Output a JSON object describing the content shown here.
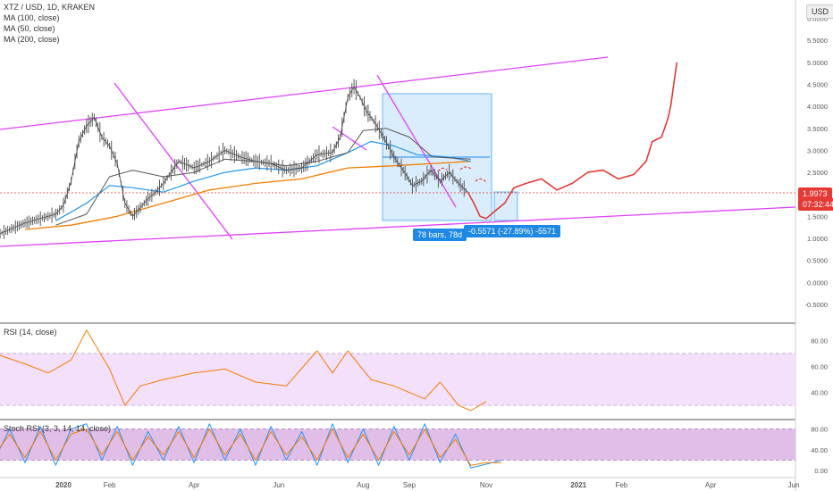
{
  "header": {
    "symbol": "XTZ / USD, 1D, KRAKEN",
    "ma100": "MA (100, close)",
    "ma50": "MA (50, close)",
    "ma200": "MA (200, close)",
    "currency": "USD"
  },
  "rsi_panel": {
    "label": "RSI (14, close)"
  },
  "stoch_panel": {
    "label": "Stoch RSI (3, 3, 14, 14, close)"
  },
  "price_tag": {
    "value": "1.9973",
    "countdown": "07:32:44"
  },
  "measure": {
    "bars_label": "78 bars, 78d",
    "change_label": "-0.5571 (-27.89%) -5571"
  },
  "colors": {
    "price_candles": "#4a4a4a",
    "ma50": "#2196f3",
    "ma100": "#555555",
    "ma200": "#f57c00",
    "channel": "#e040fb",
    "projection": "#e53935",
    "rsi_line": "#f57c00",
    "rsi_band": "#f3e0fb",
    "stoch_band": "#e1bee7",
    "measure_box": "#bbdefb",
    "tag_blue": "#1e88e5",
    "last_price": "#e53935"
  },
  "chart_data": [
    {
      "type": "line",
      "panel": "price",
      "x_ticks": [
        "2020",
        "Feb",
        "Apr",
        "Jun",
        "Aug",
        "Sep",
        "Nov",
        "2021",
        "Feb",
        "Apr",
        "Jun"
      ],
      "y_ticks": [
        "6.0000",
        "5.5000",
        "5.0000",
        "4.5000",
        "4.0000",
        "3.5000",
        "3.0000",
        "2.5000",
        "2.0000",
        "1.5000",
        "1.0000",
        "0.5000",
        "0.0000",
        "-0.5000"
      ],
      "ylim": [
        -0.6,
        6.3
      ],
      "series": [
        {
          "name": "XTZ / USD",
          "values": [
            [
              -20,
              1.05
            ],
            [
              -10,
              1.2
            ],
            [
              0,
              1.35
            ],
            [
              10,
              1.45
            ],
            [
              20,
              1.55
            ],
            [
              25,
              1.75
            ],
            [
              30,
              2.3
            ],
            [
              35,
              3.2
            ],
            [
              40,
              3.55
            ],
            [
              45,
              3.75
            ],
            [
              50,
              3.3
            ],
            [
              55,
              3.1
            ],
            [
              60,
              2.7
            ],
            [
              65,
              1.8
            ],
            [
              70,
              1.5
            ],
            [
              75,
              1.7
            ],
            [
              80,
              1.9
            ],
            [
              85,
              2.05
            ],
            [
              90,
              2.25
            ],
            [
              95,
              2.5
            ],
            [
              100,
              2.75
            ],
            [
              110,
              2.6
            ],
            [
              120,
              2.75
            ],
            [
              130,
              3.0
            ],
            [
              140,
              2.85
            ],
            [
              150,
              2.75
            ],
            [
              160,
              2.7
            ],
            [
              170,
              2.55
            ],
            [
              180,
              2.6
            ],
            [
              190,
              2.9
            ],
            [
              200,
              2.95
            ],
            [
              205,
              3.3
            ],
            [
              210,
              4.2
            ],
            [
              214,
              4.45
            ],
            [
              218,
              4.2
            ],
            [
              222,
              3.9
            ],
            [
              228,
              3.6
            ],
            [
              234,
              3.25
            ],
            [
              240,
              2.85
            ],
            [
              246,
              2.55
            ],
            [
              252,
              2.2
            ],
            [
              258,
              2.3
            ],
            [
              264,
              2.55
            ],
            [
              270,
              2.3
            ],
            [
              276,
              2.5
            ],
            [
              282,
              2.25
            ],
            [
              288,
              2.05
            ]
          ]
        },
        {
          "name": "MA (50, close)",
          "values": [
            [
              20,
              1.4
            ],
            [
              40,
              1.8
            ],
            [
              55,
              2.2
            ],
            [
              70,
              2.15
            ],
            [
              90,
              2.05
            ],
            [
              110,
              2.3
            ],
            [
              130,
              2.5
            ],
            [
              150,
              2.6
            ],
            [
              170,
              2.55
            ],
            [
              190,
              2.65
            ],
            [
              210,
              2.95
            ],
            [
              225,
              3.2
            ],
            [
              240,
              3.1
            ],
            [
              255,
              2.9
            ],
            [
              275,
              2.85
            ],
            [
              290,
              2.75
            ]
          ]
        },
        {
          "name": "MA (100, close)",
          "values": [
            [
              20,
              1.3
            ],
            [
              40,
              1.55
            ],
            [
              55,
              2.4
            ],
            [
              70,
              2.55
            ],
            [
              90,
              2.4
            ],
            [
              110,
              2.5
            ],
            [
              130,
              2.8
            ],
            [
              150,
              2.75
            ],
            [
              170,
              2.65
            ],
            [
              190,
              2.75
            ],
            [
              210,
              2.95
            ],
            [
              220,
              3.45
            ],
            [
              235,
              3.5
            ],
            [
              250,
              3.3
            ],
            [
              265,
              2.85
            ],
            [
              290,
              2.8
            ]
          ]
        },
        {
          "name": "MA (200, close)",
          "values": [
            [
              0,
              1.2
            ],
            [
              30,
              1.3
            ],
            [
              60,
              1.5
            ],
            [
              90,
              1.8
            ],
            [
              120,
              2.1
            ],
            [
              150,
              2.25
            ],
            [
              180,
              2.35
            ],
            [
              210,
              2.6
            ],
            [
              240,
              2.65
            ],
            [
              290,
              2.75
            ]
          ]
        },
        {
          "name": "Projection",
          "values": [
            [
              288,
              2.05
            ],
            [
              292,
              1.8
            ],
            [
              296,
              1.5
            ],
            [
              300,
              1.45
            ],
            [
              305,
              1.6
            ],
            [
              312,
              1.8
            ],
            [
              318,
              2.15
            ],
            [
              326,
              2.25
            ],
            [
              336,
              2.35
            ],
            [
              346,
              2.1
            ],
            [
              356,
              2.25
            ],
            [
              366,
              2.5
            ],
            [
              376,
              2.55
            ],
            [
              386,
              2.35
            ],
            [
              396,
              2.45
            ],
            [
              404,
              2.75
            ],
            [
              408,
              3.2
            ],
            [
              414,
              3.3
            ],
            [
              418,
              3.7
            ],
            [
              420,
              4.0
            ],
            [
              422,
              4.5
            ],
            [
              424,
              5.0
            ]
          ]
        }
      ]
    },
    {
      "type": "line",
      "panel": "rsi",
      "y_ticks": [
        "80.00",
        "60.00",
        "40.00"
      ],
      "ylim": [
        20,
        95
      ],
      "band": [
        30,
        70
      ],
      "series": [
        {
          "name": "RSI (14, close)",
          "values": [
            [
              -20,
              70
            ],
            [
              0,
              62
            ],
            [
              15,
              55
            ],
            [
              30,
              65
            ],
            [
              40,
              88
            ],
            [
              45,
              78
            ],
            [
              55,
              58
            ],
            [
              65,
              30
            ],
            [
              75,
              45
            ],
            [
              90,
              50
            ],
            [
              110,
              55
            ],
            [
              130,
              58
            ],
            [
              150,
              48
            ],
            [
              170,
              45
            ],
            [
              190,
              72
            ],
            [
              200,
              55
            ],
            [
              210,
              72
            ],
            [
              225,
              50
            ],
            [
              240,
              45
            ],
            [
              260,
              35
            ],
            [
              270,
              48
            ],
            [
              282,
              30
            ],
            [
              290,
              26
            ],
            [
              300,
              33
            ]
          ]
        }
      ]
    },
    {
      "type": "line",
      "panel": "stoch",
      "y_ticks": [
        "80.00",
        "40.00",
        "0.00"
      ],
      "ylim": [
        -5,
        100
      ],
      "band": [
        20,
        80
      ],
      "series": [
        {
          "name": "K",
          "values": [
            [
              -20,
              20
            ],
            [
              -10,
              80
            ],
            [
              0,
              15
            ],
            [
              10,
              85
            ],
            [
              20,
              10
            ],
            [
              30,
              80
            ],
            [
              40,
              90
            ],
            [
              50,
              20
            ],
            [
              60,
              85
            ],
            [
              70,
              10
            ],
            [
              80,
              75
            ],
            [
              90,
              20
            ],
            [
              100,
              85
            ],
            [
              110,
              15
            ],
            [
              120,
              90
            ],
            [
              130,
              20
            ],
            [
              140,
              80
            ],
            [
              150,
              10
            ],
            [
              160,
              85
            ],
            [
              170,
              20
            ],
            [
              180,
              75
            ],
            [
              190,
              10
            ],
            [
              200,
              90
            ],
            [
              210,
              15
            ],
            [
              220,
              80
            ],
            [
              230,
              10
            ],
            [
              240,
              85
            ],
            [
              250,
              20
            ],
            [
              260,
              90
            ],
            [
              270,
              15
            ],
            [
              280,
              70
            ],
            [
              290,
              5
            ],
            [
              300,
              12
            ],
            [
              310,
              20
            ]
          ]
        },
        {
          "name": "D",
          "values": [
            [
              -20,
              30
            ],
            [
              -10,
              70
            ],
            [
              0,
              25
            ],
            [
              10,
              75
            ],
            [
              20,
              20
            ],
            [
              30,
              70
            ],
            [
              40,
              80
            ],
            [
              50,
              30
            ],
            [
              60,
              75
            ],
            [
              70,
              20
            ],
            [
              80,
              65
            ],
            [
              90,
              30
            ],
            [
              100,
              75
            ],
            [
              110,
              25
            ],
            [
              120,
              80
            ],
            [
              130,
              30
            ],
            [
              140,
              70
            ],
            [
              150,
              20
            ],
            [
              160,
              75
            ],
            [
              170,
              30
            ],
            [
              180,
              65
            ],
            [
              190,
              20
            ],
            [
              200,
              80
            ],
            [
              210,
              25
            ],
            [
              220,
              70
            ],
            [
              230,
              20
            ],
            [
              240,
              75
            ],
            [
              250,
              30
            ],
            [
              260,
              80
            ],
            [
              270,
              25
            ],
            [
              280,
              60
            ],
            [
              290,
              10
            ],
            [
              300,
              15
            ],
            [
              310,
              15
            ]
          ]
        }
      ]
    }
  ]
}
